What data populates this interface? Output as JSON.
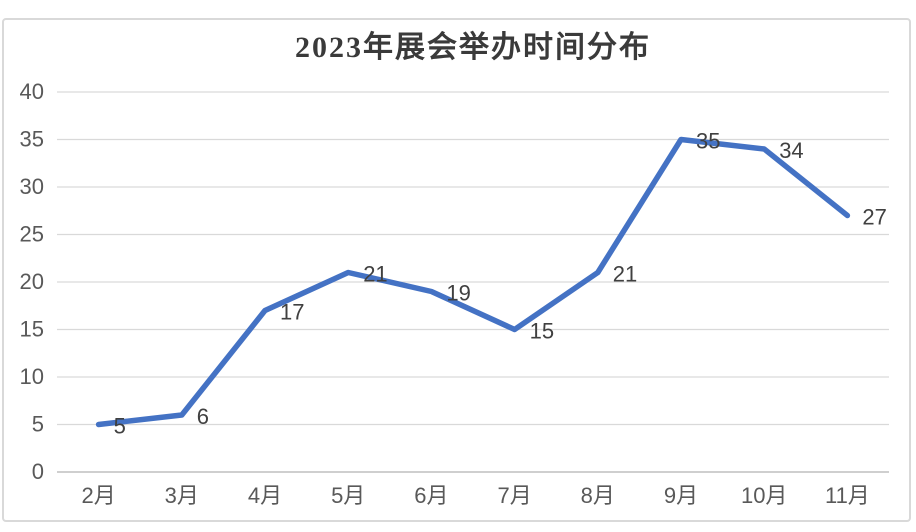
{
  "chart_data": {
    "type": "line",
    "title": "2023年展会举办时间分布",
    "categories": [
      "2月",
      "3月",
      "4月",
      "5月",
      "6月",
      "7月",
      "8月",
      "9月",
      "10月",
      "11月"
    ],
    "values": [
      5,
      6,
      17,
      21,
      19,
      15,
      21,
      35,
      34,
      27
    ],
    "data_labels_shown": true,
    "xlabel": "",
    "ylabel": "",
    "ylim": [
      0,
      40
    ],
    "ytick_step": 5,
    "yticks": [
      0,
      5,
      10,
      15,
      20,
      25,
      30,
      35,
      40
    ],
    "grid": true,
    "legend": "none",
    "colors": {
      "line": "#4472C4",
      "gridline": "#D9D9D9",
      "axis_line": "#BFBFBF",
      "axis_label": "#595959",
      "data_label": "#404040",
      "title": "#3A3A3A",
      "background": "#FFFFFF",
      "frame_border": "#D9D9D9"
    }
  }
}
